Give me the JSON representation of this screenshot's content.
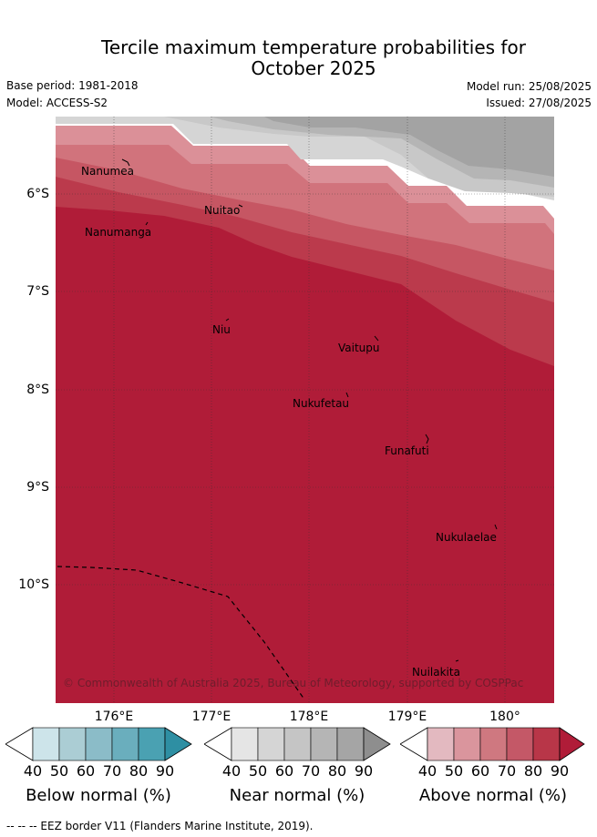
{
  "header": {
    "title_line1": "Tercile maximum temperature probabilities for",
    "title_line2": "October 2025",
    "base_period": "Base period: 1981-2018",
    "model": "Model: ACCESS-S2",
    "model_run": "Model run: 25/08/2025",
    "issued": "Issued: 27/08/2025"
  },
  "map": {
    "lon_labels": [
      "176°E",
      "177°E",
      "178°E",
      "179°E",
      "180°"
    ],
    "lat_labels": [
      "6°S",
      "7°S",
      "8°S",
      "9°S",
      "10°S"
    ],
    "places": [
      {
        "name": "Nanumea"
      },
      {
        "name": "Nuitao"
      },
      {
        "name": "Nanumanga"
      },
      {
        "name": "Niu"
      },
      {
        "name": "Vaitupu"
      },
      {
        "name": "Nukufetau"
      },
      {
        "name": "Funafuti"
      },
      {
        "name": "Nukulaelae"
      },
      {
        "name": "Nuilakita"
      }
    ],
    "copyright": "© Commonwealth of Australia 2025, Bureau of Meteorology, supported by COSPPac",
    "colors": {
      "above_90": "#b01c38",
      "above_80": "#bb3a4c",
      "above_70": "#c65663",
      "above_60": "#d1737c",
      "above_50": "#db9098",
      "near_60": "#c8c8c8",
      "near_70": "#b5b5b5",
      "near_80": "#a3a3a3",
      "near_50": "#d5d5d5"
    }
  },
  "colorbars": [
    {
      "label": "Below normal (%)",
      "ticks": [
        "40",
        "50",
        "60",
        "70",
        "80",
        "90"
      ],
      "colors": [
        "#cde4ea",
        "#abcdd4",
        "#8bbcc8",
        "#6aaebd",
        "#4aa1b2",
        "#2e8fa3"
      ]
    },
    {
      "label": "Near normal (%)",
      "ticks": [
        "40",
        "50",
        "60",
        "70",
        "80",
        "90"
      ],
      "colors": [
        "#e5e5e5",
        "#d5d5d5",
        "#c5c5c5",
        "#b5b5b5",
        "#a5a5a5",
        "#8e8e8e"
      ]
    },
    {
      "label": "Above normal (%)",
      "ticks": [
        "40",
        "50",
        "60",
        "70",
        "80",
        "90"
      ],
      "colors": [
        "#e3b9c0",
        "#da959d",
        "#cf7880",
        "#c45867",
        "#b83648",
        "#b01c38"
      ]
    }
  ],
  "footnote": "--  --  -- EEZ border V11 (Flanders Marine Institute, 2019)."
}
